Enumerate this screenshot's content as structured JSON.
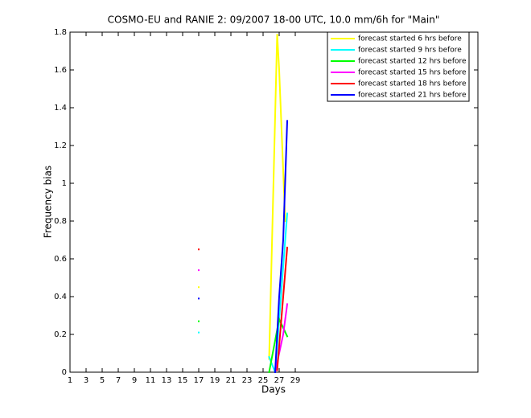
{
  "chart_data": {
    "type": "line",
    "title": "COSMO-EU and RANIE 2: 09/2007 18-00 UTC, 10.0 mm/6h for \"Main\"",
    "xlabel": "Days",
    "ylabel": "Frequency bias",
    "xlim": [
      1,
      51.7
    ],
    "ylim": [
      0,
      1.8
    ],
    "xticks": [
      1,
      3,
      5,
      7,
      9,
      11,
      13,
      15,
      17,
      19,
      21,
      23,
      25,
      27,
      29
    ],
    "yticks": [
      0,
      0.2,
      0.4,
      0.6,
      0.8,
      1,
      1.2,
      1.4,
      1.6,
      1.8
    ],
    "legend_position": "upper right",
    "series": [
      {
        "name": "forecast started 6 hrs before",
        "color": "#ffff00",
        "x": [
          17,
          18,
          25.75,
          26.75,
          27,
          27.75
        ],
        "values": [
          0.45,
          null,
          0.07,
          1.79,
          1.6,
          0.8
        ]
      },
      {
        "name": "forecast started 9 hrs before",
        "color": "#00ffff",
        "x": [
          17,
          18,
          25.75,
          26.5,
          28
        ],
        "values": [
          0.21,
          null,
          0.08,
          0,
          0.84
        ]
      },
      {
        "name": "forecast started 12 hrs before",
        "color": "#00ff00",
        "x": [
          17,
          18,
          25.75,
          27,
          28
        ],
        "values": [
          0.27,
          null,
          0,
          0.28,
          0.19
        ]
      },
      {
        "name": "forecast started 15 hrs before",
        "color": "#ff00ff",
        "x": [
          17,
          18,
          26.5,
          27.5,
          28
        ],
        "values": [
          0.54,
          null,
          0,
          0.2,
          0.36
        ]
      },
      {
        "name": "forecast started 18 hrs before",
        "color": "#ff0000",
        "x": [
          17,
          18,
          26.75,
          28
        ],
        "values": [
          0.65,
          null,
          0.01,
          0.66
        ]
      },
      {
        "name": "forecast started 21 hrs before",
        "color": "#0000ff",
        "x": [
          17,
          18,
          26.5,
          27,
          27.5,
          28
        ],
        "values": [
          0.39,
          null,
          0,
          0.4,
          0.7,
          1.33
        ]
      }
    ]
  }
}
